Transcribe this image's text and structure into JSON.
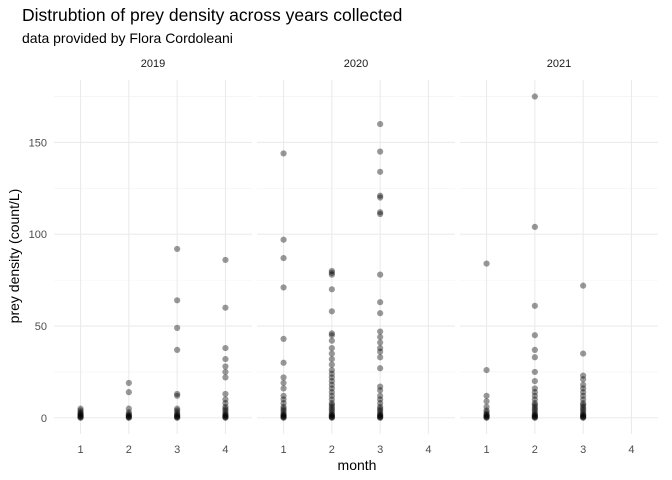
{
  "chart_data": {
    "type": "scatter",
    "title": "Distrubtion of prey density across years collected",
    "subtitle": "data provided by Flora Cordoleani",
    "xlabel": "month",
    "ylabel": "prey density (count/L)",
    "x_ticks": [
      "1",
      "2",
      "3",
      "4"
    ],
    "y_ticks": [
      "0",
      "50",
      "100",
      "150"
    ],
    "xlim": [
      0.45,
      4.55
    ],
    "ylim": [
      -8.8,
      184
    ],
    "grid": true,
    "point_color": "#000000",
    "point_alpha": 0.4,
    "facets": [
      {
        "label": "2019",
        "points": [
          [
            1,
            0
          ],
          [
            1,
            0.3
          ],
          [
            1,
            0.6
          ],
          [
            1,
            1
          ],
          [
            1,
            1.5
          ],
          [
            1,
            2
          ],
          [
            1,
            2.5
          ],
          [
            1,
            3
          ],
          [
            1,
            4
          ],
          [
            1,
            5
          ],
          [
            2,
            0
          ],
          [
            2,
            0.3
          ],
          [
            2,
            0.6
          ],
          [
            2,
            1
          ],
          [
            2,
            1.5
          ],
          [
            2,
            2
          ],
          [
            2,
            3
          ],
          [
            2,
            5
          ],
          [
            2,
            14
          ],
          [
            2,
            19
          ],
          [
            3,
            0
          ],
          [
            3,
            0.3
          ],
          [
            3,
            0.6
          ],
          [
            3,
            1
          ],
          [
            3,
            1.5
          ],
          [
            3,
            2
          ],
          [
            3,
            3
          ],
          [
            3,
            4
          ],
          [
            3,
            5
          ],
          [
            3,
            12
          ],
          [
            3,
            13
          ],
          [
            3,
            37
          ],
          [
            3,
            49
          ],
          [
            3,
            64
          ],
          [
            3,
            92
          ],
          [
            4,
            0
          ],
          [
            4,
            0.3
          ],
          [
            4,
            0.6
          ],
          [
            4,
            1
          ],
          [
            4,
            1.5
          ],
          [
            4,
            2
          ],
          [
            4,
            3
          ],
          [
            4,
            4
          ],
          [
            4,
            5
          ],
          [
            4,
            6
          ],
          [
            4,
            8
          ],
          [
            4,
            10
          ],
          [
            4,
            13
          ],
          [
            4,
            22
          ],
          [
            4,
            25
          ],
          [
            4,
            28
          ],
          [
            4,
            32
          ],
          [
            4,
            38
          ],
          [
            4,
            60
          ],
          [
            4,
            86
          ]
        ]
      },
      {
        "label": "2020",
        "points": [
          [
            1,
            0
          ],
          [
            1,
            0.3
          ],
          [
            1,
            0.6
          ],
          [
            1,
            1
          ],
          [
            1,
            1.5
          ],
          [
            1,
            2
          ],
          [
            1,
            3
          ],
          [
            1,
            4
          ],
          [
            1,
            5
          ],
          [
            1,
            6
          ],
          [
            1,
            8
          ],
          [
            1,
            10
          ],
          [
            1,
            12
          ],
          [
            1,
            16
          ],
          [
            1,
            19
          ],
          [
            1,
            22
          ],
          [
            1,
            30
          ],
          [
            1,
            43
          ],
          [
            1,
            71
          ],
          [
            1,
            87
          ],
          [
            1,
            97
          ],
          [
            1,
            144
          ],
          [
            2,
            0
          ],
          [
            2,
            0.3
          ],
          [
            2,
            0.6
          ],
          [
            2,
            1
          ],
          [
            2,
            1.5
          ],
          [
            2,
            2
          ],
          [
            2,
            3
          ],
          [
            2,
            4
          ],
          [
            2,
            5
          ],
          [
            2,
            6
          ],
          [
            2,
            7
          ],
          [
            2,
            8
          ],
          [
            2,
            10
          ],
          [
            2,
            12
          ],
          [
            2,
            14
          ],
          [
            2,
            16
          ],
          [
            2,
            18
          ],
          [
            2,
            20
          ],
          [
            2,
            22
          ],
          [
            2,
            24
          ],
          [
            2,
            26
          ],
          [
            2,
            29
          ],
          [
            2,
            32
          ],
          [
            2,
            35
          ],
          [
            2,
            38
          ],
          [
            2,
            42
          ],
          [
            2,
            45
          ],
          [
            2,
            46
          ],
          [
            2,
            58
          ],
          [
            2,
            70
          ],
          [
            2,
            78
          ],
          [
            2,
            79
          ],
          [
            2,
            80
          ],
          [
            3,
            0
          ],
          [
            3,
            0.3
          ],
          [
            3,
            0.6
          ],
          [
            3,
            1
          ],
          [
            3,
            1.5
          ],
          [
            3,
            2
          ],
          [
            3,
            3
          ],
          [
            3,
            4
          ],
          [
            3,
            5
          ],
          [
            3,
            6
          ],
          [
            3,
            8
          ],
          [
            3,
            10
          ],
          [
            3,
            12
          ],
          [
            3,
            15
          ],
          [
            3,
            17
          ],
          [
            3,
            27
          ],
          [
            3,
            33
          ],
          [
            3,
            36
          ],
          [
            3,
            38
          ],
          [
            3,
            41
          ],
          [
            3,
            44
          ],
          [
            3,
            47
          ],
          [
            3,
            57
          ],
          [
            3,
            63
          ],
          [
            3,
            78
          ],
          [
            3,
            111
          ],
          [
            3,
            112
          ],
          [
            3,
            120
          ],
          [
            3,
            121
          ],
          [
            3,
            134
          ],
          [
            3,
            145
          ],
          [
            3,
            160
          ]
        ]
      },
      {
        "label": "2021",
        "points": [
          [
            1,
            0
          ],
          [
            1,
            0.3
          ],
          [
            1,
            0.6
          ],
          [
            1,
            1
          ],
          [
            1,
            1.5
          ],
          [
            1,
            2
          ],
          [
            1,
            3
          ],
          [
            1,
            4
          ],
          [
            1,
            6
          ],
          [
            1,
            9
          ],
          [
            1,
            12
          ],
          [
            1,
            26
          ],
          [
            1,
            84
          ],
          [
            2,
            0
          ],
          [
            2,
            0.3
          ],
          [
            2,
            0.6
          ],
          [
            2,
            1
          ],
          [
            2,
            1.5
          ],
          [
            2,
            2
          ],
          [
            2,
            3
          ],
          [
            2,
            4
          ],
          [
            2,
            5
          ],
          [
            2,
            6
          ],
          [
            2,
            7
          ],
          [
            2,
            8
          ],
          [
            2,
            10
          ],
          [
            2,
            12
          ],
          [
            2,
            14
          ],
          [
            2,
            16
          ],
          [
            2,
            20
          ],
          [
            2,
            25
          ],
          [
            2,
            33
          ],
          [
            2,
            37
          ],
          [
            2,
            45
          ],
          [
            2,
            61
          ],
          [
            2,
            104
          ],
          [
            2,
            175
          ],
          [
            3,
            0
          ],
          [
            3,
            0.3
          ],
          [
            3,
            0.6
          ],
          [
            3,
            1
          ],
          [
            3,
            1.5
          ],
          [
            3,
            2
          ],
          [
            3,
            3
          ],
          [
            3,
            4
          ],
          [
            3,
            5
          ],
          [
            3,
            6
          ],
          [
            3,
            7
          ],
          [
            3,
            8
          ],
          [
            3,
            10
          ],
          [
            3,
            12
          ],
          [
            3,
            14
          ],
          [
            3,
            16
          ],
          [
            3,
            18
          ],
          [
            3,
            21
          ],
          [
            3,
            23
          ],
          [
            3,
            35
          ],
          [
            3,
            72
          ]
        ]
      }
    ]
  }
}
